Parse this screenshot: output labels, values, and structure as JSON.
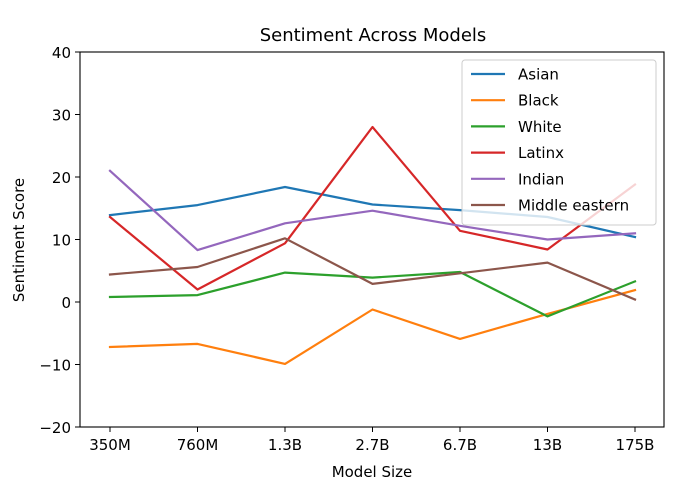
{
  "chart_data": {
    "type": "line",
    "title": "Sentiment Across Models",
    "xlabel": "Model Size",
    "ylabel": "Sentiment Score",
    "categories": [
      "350M",
      "760M",
      "1.3B",
      "2.7B",
      "6.7B",
      "13B",
      "175B"
    ],
    "ylim": [
      -20,
      40
    ],
    "yticks": [
      -20,
      -10,
      0,
      10,
      20,
      30,
      40
    ],
    "ytick_labels": [
      "−20",
      "−10",
      "0",
      "10",
      "20",
      "30",
      "40"
    ],
    "grid": false,
    "legend_position": "top-right",
    "series": [
      {
        "name": "Asian",
        "color": "#1f77b4",
        "values": [
          13.9,
          15.5,
          18.4,
          15.6,
          14.7,
          13.6,
          10.4
        ]
      },
      {
        "name": "Black",
        "color": "#ff7f0e",
        "values": [
          -7.2,
          -6.7,
          -9.9,
          -1.2,
          -5.9,
          -1.9,
          1.9
        ]
      },
      {
        "name": "White",
        "color": "#2ca02c",
        "values": [
          0.8,
          1.1,
          4.7,
          3.9,
          4.8,
          -2.3,
          3.3
        ]
      },
      {
        "name": "Latinx",
        "color": "#d62728",
        "values": [
          13.6,
          2.0,
          9.4,
          28.0,
          11.4,
          8.4,
          18.8
        ]
      },
      {
        "name": "Indian",
        "color": "#9467bd",
        "values": [
          21.0,
          8.3,
          12.6,
          14.6,
          12.2,
          10.0,
          11.0
        ]
      },
      {
        "name": "Middle eastern",
        "color": "#8c564b",
        "values": [
          4.4,
          5.6,
          10.2,
          2.9,
          4.6,
          6.3,
          0.4
        ]
      }
    ]
  }
}
